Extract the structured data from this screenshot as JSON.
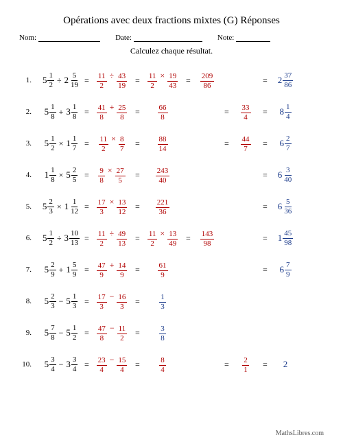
{
  "title": "Opérations avec deux fractions mixtes (G) Réponses",
  "labels": {
    "name": "Nom:",
    "date": "Date:",
    "note": "Note:"
  },
  "subtitle": "Calculez chaque résultat.",
  "footer": "MathsLibres.com",
  "underline_widths": {
    "name": 90,
    "date": 100,
    "note": 50
  },
  "colors": {
    "input": "#000000",
    "step": "#b00000",
    "final": "#1a3a8a"
  },
  "problems": [
    {
      "n": "1.",
      "c": [
        {
          "col": "black",
          "t": "expr",
          "a": {
            "w": "5",
            "n": "1",
            "d": "2"
          },
          "op": "÷",
          "b": {
            "w": "2",
            "n": "5",
            "d": "19"
          }
        },
        {
          "col": "red",
          "eq": true,
          "t": "expr",
          "a": {
            "n": "11",
            "d": "2"
          },
          "op": "÷",
          "b": {
            "n": "43",
            "d": "19"
          }
        },
        {
          "col": "red",
          "eq": true,
          "t": "expr",
          "a": {
            "n": "11",
            "d": "2"
          },
          "op": "×",
          "b": {
            "n": "19",
            "d": "43"
          }
        },
        {
          "col": "red",
          "eq": true,
          "t": "frac",
          "n": "209",
          "d": "86"
        },
        null,
        {
          "col": "blue",
          "eq": true,
          "t": "mixed",
          "w": "2",
          "n": "37",
          "d": "86"
        }
      ]
    },
    {
      "n": "2.",
      "c": [
        {
          "col": "black",
          "t": "expr",
          "a": {
            "w": "5",
            "n": "1",
            "d": "8"
          },
          "op": "+",
          "b": {
            "w": "3",
            "n": "1",
            "d": "8"
          }
        },
        {
          "col": "red",
          "eq": true,
          "t": "expr",
          "a": {
            "n": "41",
            "d": "8"
          },
          "op": "+",
          "b": {
            "n": "25",
            "d": "8"
          }
        },
        {
          "col": "red",
          "eq": true,
          "t": "frac",
          "n": "66",
          "d": "8"
        },
        null,
        {
          "col": "red",
          "eq": true,
          "t": "frac",
          "n": "33",
          "d": "4"
        },
        {
          "col": "blue",
          "eq": true,
          "t": "mixed",
          "w": "8",
          "n": "1",
          "d": "4"
        }
      ]
    },
    {
      "n": "3.",
      "c": [
        {
          "col": "black",
          "t": "expr",
          "a": {
            "w": "5",
            "n": "1",
            "d": "2"
          },
          "op": "×",
          "b": {
            "w": "1",
            "n": "1",
            "d": "7"
          }
        },
        {
          "col": "red",
          "eq": true,
          "t": "expr",
          "a": {
            "n": "11",
            "d": "2"
          },
          "op": "×",
          "b": {
            "n": "8",
            "d": "7"
          }
        },
        {
          "col": "red",
          "eq": true,
          "t": "frac",
          "n": "88",
          "d": "14"
        },
        null,
        {
          "col": "red",
          "eq": true,
          "t": "frac",
          "n": "44",
          "d": "7"
        },
        {
          "col": "blue",
          "eq": true,
          "t": "mixed",
          "w": "6",
          "n": "2",
          "d": "7"
        }
      ]
    },
    {
      "n": "4.",
      "c": [
        {
          "col": "black",
          "t": "expr",
          "a": {
            "w": "1",
            "n": "1",
            "d": "8"
          },
          "op": "×",
          "b": {
            "w": "5",
            "n": "2",
            "d": "5"
          }
        },
        {
          "col": "red",
          "eq": true,
          "t": "expr",
          "a": {
            "n": "9",
            "d": "8"
          },
          "op": "×",
          "b": {
            "n": "27",
            "d": "5"
          }
        },
        {
          "col": "red",
          "eq": true,
          "t": "frac",
          "n": "243",
          "d": "40"
        },
        null,
        null,
        {
          "col": "blue",
          "eq": true,
          "t": "mixed",
          "w": "6",
          "n": "3",
          "d": "40"
        }
      ]
    },
    {
      "n": "5.",
      "c": [
        {
          "col": "black",
          "t": "expr",
          "a": {
            "w": "5",
            "n": "2",
            "d": "3"
          },
          "op": "×",
          "b": {
            "w": "1",
            "n": "1",
            "d": "12"
          }
        },
        {
          "col": "red",
          "eq": true,
          "t": "expr",
          "a": {
            "n": "17",
            "d": "3"
          },
          "op": "×",
          "b": {
            "n": "13",
            "d": "12"
          }
        },
        {
          "col": "red",
          "eq": true,
          "t": "frac",
          "n": "221",
          "d": "36"
        },
        null,
        null,
        {
          "col": "blue",
          "eq": true,
          "t": "mixed",
          "w": "6",
          "n": "5",
          "d": "36"
        }
      ]
    },
    {
      "n": "6.",
      "c": [
        {
          "col": "black",
          "t": "expr",
          "a": {
            "w": "5",
            "n": "1",
            "d": "2"
          },
          "op": "÷",
          "b": {
            "w": "3",
            "n": "10",
            "d": "13"
          }
        },
        {
          "col": "red",
          "eq": true,
          "t": "expr",
          "a": {
            "n": "11",
            "d": "2"
          },
          "op": "÷",
          "b": {
            "n": "49",
            "d": "13"
          }
        },
        {
          "col": "red",
          "eq": true,
          "t": "expr",
          "a": {
            "n": "11",
            "d": "2"
          },
          "op": "×",
          "b": {
            "n": "13",
            "d": "49"
          }
        },
        {
          "col": "red",
          "eq": true,
          "t": "frac",
          "n": "143",
          "d": "98"
        },
        null,
        {
          "col": "blue",
          "eq": true,
          "t": "mixed",
          "w": "1",
          "n": "45",
          "d": "98"
        }
      ]
    },
    {
      "n": "7.",
      "c": [
        {
          "col": "black",
          "t": "expr",
          "a": {
            "w": "5",
            "n": "2",
            "d": "9"
          },
          "op": "+",
          "b": {
            "w": "1",
            "n": "5",
            "d": "9"
          }
        },
        {
          "col": "red",
          "eq": true,
          "t": "expr",
          "a": {
            "n": "47",
            "d": "9"
          },
          "op": "+",
          "b": {
            "n": "14",
            "d": "9"
          }
        },
        {
          "col": "red",
          "eq": true,
          "t": "frac",
          "n": "61",
          "d": "9"
        },
        null,
        null,
        {
          "col": "blue",
          "eq": true,
          "t": "mixed",
          "w": "6",
          "n": "7",
          "d": "9"
        }
      ]
    },
    {
      "n": "8.",
      "c": [
        {
          "col": "black",
          "t": "expr",
          "a": {
            "w": "5",
            "n": "2",
            "d": "3"
          },
          "op": "−",
          "b": {
            "w": "5",
            "n": "1",
            "d": "3"
          }
        },
        {
          "col": "red",
          "eq": true,
          "t": "expr",
          "a": {
            "n": "17",
            "d": "3"
          },
          "op": "−",
          "b": {
            "n": "16",
            "d": "3"
          }
        },
        {
          "col": "blue",
          "eq": true,
          "t": "frac",
          "n": "1",
          "d": "3"
        },
        null,
        null,
        null
      ]
    },
    {
      "n": "9.",
      "c": [
        {
          "col": "black",
          "t": "expr",
          "a": {
            "w": "5",
            "n": "7",
            "d": "8"
          },
          "op": "−",
          "b": {
            "w": "5",
            "n": "1",
            "d": "2"
          }
        },
        {
          "col": "red",
          "eq": true,
          "t": "expr",
          "a": {
            "n": "47",
            "d": "8"
          },
          "op": "−",
          "b": {
            "n": "11",
            "d": "2"
          }
        },
        {
          "col": "blue",
          "eq": true,
          "t": "frac",
          "n": "3",
          "d": "8"
        },
        null,
        null,
        null
      ]
    },
    {
      "n": "10.",
      "c": [
        {
          "col": "black",
          "t": "expr",
          "a": {
            "w": "5",
            "n": "3",
            "d": "4"
          },
          "op": "−",
          "b": {
            "w": "3",
            "n": "3",
            "d": "4"
          }
        },
        {
          "col": "red",
          "eq": true,
          "t": "expr",
          "a": {
            "n": "23",
            "d": "4"
          },
          "op": "−",
          "b": {
            "n": "15",
            "d": "4"
          }
        },
        {
          "col": "red",
          "eq": true,
          "t": "frac",
          "n": "8",
          "d": "4"
        },
        null,
        {
          "col": "red",
          "eq": true,
          "t": "frac",
          "n": "2",
          "d": "1"
        },
        {
          "col": "blue",
          "eq": true,
          "t": "int",
          "v": "2"
        }
      ]
    }
  ]
}
